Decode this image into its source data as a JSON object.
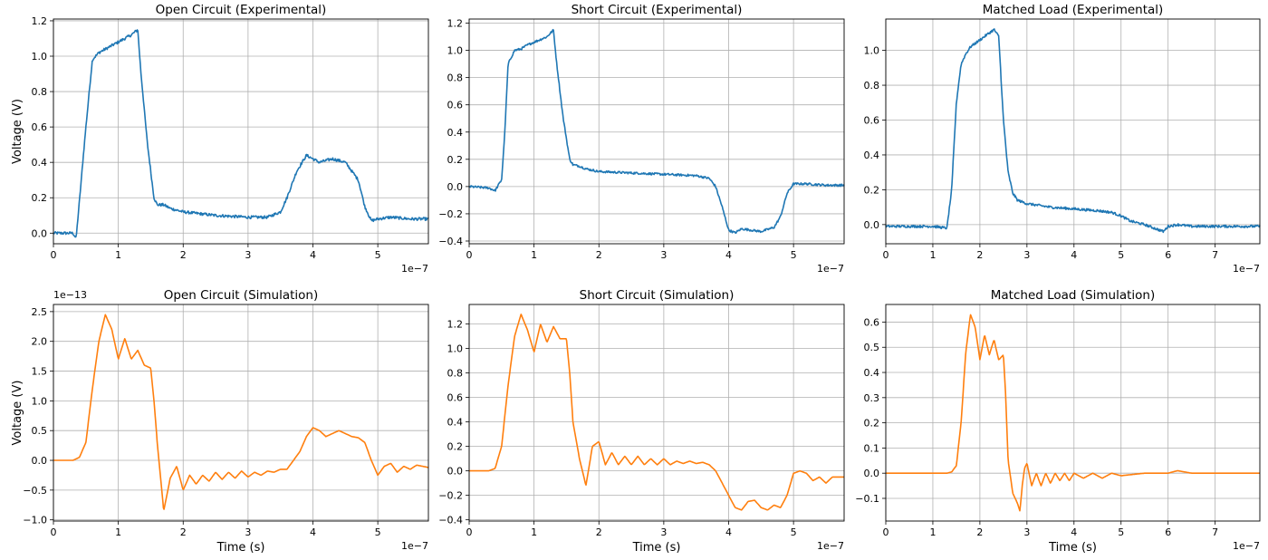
{
  "chart_data": [
    {
      "type": "line",
      "title": "Open Circuit (Experimental)",
      "ylabel": "Voltage (V)",
      "xlabel": "",
      "x_offset_label": "1e−7",
      "y_offset_label": "",
      "grid": true,
      "xlim": [
        0,
        5.78
      ],
      "ylim": [
        -0.06,
        1.21
      ],
      "xticks": [
        0,
        1,
        2,
        3,
        4,
        5
      ],
      "yticks": [
        0.0,
        0.2,
        0.4,
        0.6,
        0.8,
        1.0,
        1.2
      ],
      "ytick_labels": [
        "0.0",
        "0.2",
        "0.4",
        "0.6",
        "0.8",
        "1.0",
        "1.2"
      ],
      "color": "#1f77b4",
      "noise": 0.008,
      "x_units": "×1e-7 s",
      "series": [
        {
          "x": [
            0,
            0.3,
            0.35,
            0.5,
            0.6,
            0.7,
            0.8,
            1.0,
            1.2,
            1.3,
            1.35,
            1.45,
            1.55,
            1.6,
            1.7,
            1.8,
            2.0,
            2.5,
            3.0,
            3.3,
            3.5,
            3.6,
            3.75,
            3.9,
            4.0,
            4.1,
            4.3,
            4.5,
            4.7,
            4.8,
            4.9,
            5.0,
            5.2,
            5.5,
            5.78
          ],
          "y": [
            0.0,
            0.0,
            -0.03,
            0.6,
            0.98,
            1.02,
            1.04,
            1.08,
            1.12,
            1.15,
            0.9,
            0.5,
            0.2,
            0.16,
            0.16,
            0.14,
            0.12,
            0.1,
            0.09,
            0.09,
            0.12,
            0.2,
            0.35,
            0.44,
            0.42,
            0.4,
            0.42,
            0.4,
            0.3,
            0.15,
            0.07,
            0.08,
            0.09,
            0.08,
            0.08
          ]
        }
      ]
    },
    {
      "type": "line",
      "title": "Short Circuit (Experimental)",
      "ylabel": "",
      "xlabel": "",
      "x_offset_label": "1e−7",
      "y_offset_label": "",
      "grid": true,
      "xlim": [
        0,
        5.78
      ],
      "ylim": [
        -0.42,
        1.23
      ],
      "xticks": [
        0,
        1,
        2,
        3,
        4,
        5
      ],
      "yticks": [
        -0.4,
        -0.2,
        0.0,
        0.2,
        0.4,
        0.6,
        0.8,
        1.0,
        1.2
      ],
      "ytick_labels": [
        "−0.4",
        "−0.2",
        "0.0",
        "0.2",
        "0.4",
        "0.6",
        "0.8",
        "1.0",
        "1.2"
      ],
      "color": "#1f77b4",
      "noise": 0.008,
      "x_units": "×1e-7 s",
      "series": [
        {
          "x": [
            0,
            0.3,
            0.4,
            0.5,
            0.55,
            0.6,
            0.7,
            0.8,
            0.9,
            1.0,
            1.2,
            1.3,
            1.35,
            1.45,
            1.55,
            1.6,
            1.7,
            1.8,
            2.0,
            2.5,
            3.0,
            3.5,
            3.7,
            3.8,
            3.9,
            4.0,
            4.1,
            4.2,
            4.5,
            4.7,
            4.8,
            4.9,
            5.0,
            5.2,
            5.5,
            5.78
          ],
          "y": [
            0.0,
            -0.01,
            -0.03,
            0.05,
            0.4,
            0.9,
            1.0,
            1.01,
            1.04,
            1.06,
            1.1,
            1.15,
            0.9,
            0.5,
            0.2,
            0.16,
            0.15,
            0.13,
            0.11,
            0.1,
            0.09,
            0.08,
            0.06,
            0.0,
            -0.15,
            -0.32,
            -0.34,
            -0.31,
            -0.33,
            -0.3,
            -0.22,
            -0.05,
            0.02,
            0.02,
            0.01,
            0.01
          ]
        }
      ]
    },
    {
      "type": "line",
      "title": "Matched Load (Experimental)",
      "ylabel": "",
      "xlabel": "",
      "x_offset_label": "1e−7",
      "y_offset_label": "",
      "grid": true,
      "xlim": [
        0,
        7.95
      ],
      "ylim": [
        -0.11,
        1.18
      ],
      "xticks": [
        0,
        1,
        2,
        3,
        4,
        5,
        6,
        7
      ],
      "yticks": [
        0.0,
        0.2,
        0.4,
        0.6,
        0.8,
        1.0
      ],
      "ytick_labels": [
        "0.0",
        "0.2",
        "0.4",
        "0.6",
        "0.8",
        "1.0"
      ],
      "color": "#1f77b4",
      "noise": 0.007,
      "x_units": "×1e-7 s",
      "series": [
        {
          "x": [
            0,
            0.5,
            1.0,
            1.3,
            1.4,
            1.5,
            1.6,
            1.7,
            1.8,
            2.0,
            2.2,
            2.3,
            2.4,
            2.5,
            2.6,
            2.7,
            2.8,
            3.0,
            3.5,
            4.0,
            4.5,
            4.8,
            5.0,
            5.2,
            5.5,
            5.8,
            5.9,
            6.0,
            6.2,
            6.5,
            7.0,
            7.95
          ],
          "y": [
            -0.01,
            -0.01,
            -0.01,
            -0.02,
            0.2,
            0.7,
            0.92,
            0.98,
            1.02,
            1.06,
            1.1,
            1.12,
            1.08,
            0.6,
            0.3,
            0.18,
            0.14,
            0.12,
            0.1,
            0.09,
            0.08,
            0.07,
            0.05,
            0.02,
            0.0,
            -0.03,
            -0.04,
            -0.01,
            0.0,
            -0.01,
            -0.01,
            -0.01
          ]
        }
      ]
    },
    {
      "type": "line",
      "title": "Open Circuit (Simulation)",
      "ylabel": "Voltage (V)",
      "xlabel": "Time (s)",
      "x_offset_label": "1e−7",
      "y_offset_label": "1e−13",
      "grid": true,
      "xlim": [
        0,
        5.78
      ],
      "ylim": [
        -1.02,
        2.62
      ],
      "xticks": [
        0,
        1,
        2,
        3,
        4,
        5
      ],
      "yticks": [
        -1.0,
        -0.5,
        0.0,
        0.5,
        1.0,
        1.5,
        2.0,
        2.5
      ],
      "ytick_labels": [
        "−1.0",
        "−0.5",
        "0.0",
        "0.5",
        "1.0",
        "1.5",
        "2.0",
        "2.5"
      ],
      "color": "#ff7f0e",
      "noise": 0,
      "x_units": "×1e-7 s",
      "y_units": "×1e-13 V",
      "series": [
        {
          "x": [
            0,
            0.3,
            0.4,
            0.5,
            0.6,
            0.7,
            0.8,
            0.9,
            1.0,
            1.1,
            1.2,
            1.3,
            1.4,
            1.5,
            1.55,
            1.6,
            1.7,
            1.8,
            1.9,
            2.0,
            2.1,
            2.2,
            2.3,
            2.4,
            2.5,
            2.6,
            2.7,
            2.8,
            2.9,
            3.0,
            3.1,
            3.2,
            3.3,
            3.4,
            3.5,
            3.6,
            3.7,
            3.8,
            3.9,
            4.0,
            4.1,
            4.2,
            4.3,
            4.4,
            4.5,
            4.6,
            4.7,
            4.8,
            4.9,
            5.0,
            5.1,
            5.2,
            5.3,
            5.4,
            5.5,
            5.6,
            5.78
          ],
          "y": [
            0.0,
            0.0,
            0.05,
            0.3,
            1.2,
            2.0,
            2.45,
            2.2,
            1.7,
            2.05,
            1.7,
            1.85,
            1.6,
            1.55,
            1.0,
            0.3,
            -0.85,
            -0.3,
            -0.1,
            -0.5,
            -0.25,
            -0.4,
            -0.25,
            -0.35,
            -0.2,
            -0.32,
            -0.2,
            -0.3,
            -0.18,
            -0.28,
            -0.2,
            -0.25,
            -0.18,
            -0.2,
            -0.15,
            -0.15,
            0.0,
            0.15,
            0.4,
            0.55,
            0.5,
            0.4,
            0.45,
            0.5,
            0.45,
            0.4,
            0.38,
            0.3,
            0.0,
            -0.25,
            -0.1,
            -0.05,
            -0.2,
            -0.1,
            -0.15,
            -0.08,
            -0.12
          ]
        }
      ]
    },
    {
      "type": "line",
      "title": "Short Circuit (Simulation)",
      "ylabel": "",
      "xlabel": "Time (s)",
      "x_offset_label": "1e−7",
      "y_offset_label": "",
      "grid": true,
      "xlim": [
        0,
        5.78
      ],
      "ylim": [
        -0.41,
        1.36
      ],
      "xticks": [
        0,
        1,
        2,
        3,
        4,
        5
      ],
      "yticks": [
        -0.4,
        -0.2,
        0.0,
        0.2,
        0.4,
        0.6,
        0.8,
        1.0,
        1.2
      ],
      "ytick_labels": [
        "−0.4",
        "−0.2",
        "0.0",
        "0.2",
        "0.4",
        "0.6",
        "0.8",
        "1.0",
        "1.2"
      ],
      "color": "#ff7f0e",
      "noise": 0,
      "x_units": "×1e-7 s",
      "series": [
        {
          "x": [
            0,
            0.3,
            0.4,
            0.5,
            0.6,
            0.7,
            0.8,
            0.9,
            1.0,
            1.1,
            1.2,
            1.3,
            1.4,
            1.5,
            1.55,
            1.6,
            1.7,
            1.8,
            1.9,
            2.0,
            2.1,
            2.2,
            2.3,
            2.4,
            2.5,
            2.6,
            2.7,
            2.8,
            2.9,
            3.0,
            3.1,
            3.2,
            3.3,
            3.4,
            3.5,
            3.6,
            3.7,
            3.8,
            3.9,
            4.0,
            4.1,
            4.2,
            4.3,
            4.4,
            4.5,
            4.6,
            4.7,
            4.8,
            4.9,
            5.0,
            5.1,
            5.2,
            5.3,
            5.4,
            5.5,
            5.6,
            5.78
          ],
          "y": [
            0.0,
            0.0,
            0.02,
            0.2,
            0.7,
            1.1,
            1.28,
            1.15,
            0.97,
            1.2,
            1.05,
            1.18,
            1.08,
            1.08,
            0.8,
            0.4,
            0.1,
            -0.12,
            0.2,
            0.24,
            0.05,
            0.15,
            0.05,
            0.12,
            0.05,
            0.12,
            0.05,
            0.1,
            0.05,
            0.1,
            0.05,
            0.08,
            0.06,
            0.08,
            0.06,
            0.07,
            0.05,
            0.0,
            -0.1,
            -0.2,
            -0.3,
            -0.32,
            -0.25,
            -0.24,
            -0.3,
            -0.32,
            -0.28,
            -0.3,
            -0.2,
            -0.02,
            0.0,
            -0.02,
            -0.08,
            -0.05,
            -0.1,
            -0.05,
            -0.05
          ]
        }
      ]
    },
    {
      "type": "line",
      "title": "Matched Load (Simulation)",
      "ylabel": "",
      "xlabel": "Time (s)",
      "x_offset_label": "1e−7",
      "y_offset_label": "",
      "grid": true,
      "xlim": [
        0,
        7.95
      ],
      "ylim": [
        -0.19,
        0.67
      ],
      "xticks": [
        0,
        1,
        2,
        3,
        4,
        5,
        6,
        7
      ],
      "yticks": [
        -0.1,
        0.0,
        0.1,
        0.2,
        0.3,
        0.4,
        0.5,
        0.6
      ],
      "ytick_labels": [
        "−0.1",
        "0.0",
        "0.1",
        "0.2",
        "0.3",
        "0.4",
        "0.5",
        "0.6"
      ],
      "color": "#ff7f0e",
      "noise": 0,
      "x_units": "×1e-7 s",
      "series": [
        {
          "x": [
            0,
            1.3,
            1.4,
            1.5,
            1.6,
            1.7,
            1.8,
            1.9,
            2.0,
            2.1,
            2.2,
            2.3,
            2.4,
            2.5,
            2.55,
            2.6,
            2.7,
            2.8,
            2.85,
            2.9,
            2.95,
            3.0,
            3.1,
            3.2,
            3.3,
            3.4,
            3.5,
            3.6,
            3.7,
            3.8,
            3.9,
            4.0,
            4.2,
            4.4,
            4.6,
            4.8,
            5.0,
            5.5,
            6.0,
            6.2,
            6.5,
            7.0,
            7.5,
            7.95
          ],
          "y": [
            0.0,
            0.0,
            0.005,
            0.03,
            0.2,
            0.48,
            0.63,
            0.58,
            0.45,
            0.55,
            0.47,
            0.53,
            0.45,
            0.47,
            0.3,
            0.05,
            -0.08,
            -0.12,
            -0.15,
            -0.05,
            0.02,
            0.04,
            -0.05,
            0.0,
            -0.05,
            0.0,
            -0.04,
            0.0,
            -0.03,
            0.0,
            -0.03,
            0.0,
            -0.02,
            0.0,
            -0.02,
            0.0,
            -0.01,
            0.0,
            0.0,
            0.01,
            0.0,
            0.0,
            0.0,
            0.0
          ]
        }
      ]
    }
  ]
}
